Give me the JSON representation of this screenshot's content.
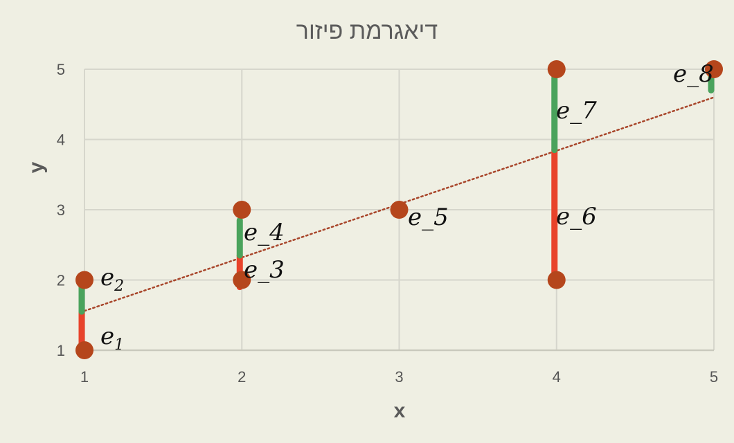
{
  "chart_data": {
    "type": "scatter",
    "title": "דיאגרמת פיזור",
    "xlabel": "x",
    "ylabel": "y",
    "xlim": [
      1,
      5
    ],
    "ylim": [
      1,
      5
    ],
    "x_ticks": [
      "1",
      "2",
      "3",
      "4",
      "5"
    ],
    "y_ticks": [
      "1",
      "2",
      "3",
      "4",
      "5"
    ],
    "grid": true,
    "points": [
      {
        "x": 1,
        "y": 1
      },
      {
        "x": 1,
        "y": 2
      },
      {
        "x": 2,
        "y": 2
      },
      {
        "x": 2,
        "y": 3
      },
      {
        "x": 3,
        "y": 3
      },
      {
        "x": 4,
        "y": 2
      },
      {
        "x": 4,
        "y": 5
      },
      {
        "x": 5,
        "y": 5
      }
    ],
    "trendline": {
      "style": "dotted",
      "slope": 0.76,
      "intercept": 0.8
    },
    "residuals": [
      {
        "label": "e",
        "sub": "1",
        "x": 1,
        "y_from": 1.0,
        "y_to": 1.55,
        "color": "#e8432b"
      },
      {
        "label": "e",
        "sub": "2",
        "x": 1,
        "y_from": 1.55,
        "y_to": 1.9,
        "color": "#4aa35c"
      },
      {
        "label": "e_3",
        "sub": "",
        "x": 2,
        "y_from": 1.9,
        "y_to": 2.35,
        "color": "#e8432b"
      },
      {
        "label": "e_4",
        "sub": "",
        "x": 2,
        "y_from": 2.35,
        "y_to": 2.85,
        "color": "#4aa35c"
      },
      {
        "label": "e_5",
        "sub": "",
        "x": 3,
        "y_from": 3.0,
        "y_to": 3.0,
        "color": "#e8432b"
      },
      {
        "label": "e_6",
        "sub": "",
        "x": 4,
        "y_from": 2.05,
        "y_to": 3.85,
        "color": "#e8432b"
      },
      {
        "label": "e_7",
        "sub": "",
        "x": 4,
        "y_from": 3.85,
        "y_to": 4.88,
        "color": "#4aa35c"
      },
      {
        "label": "e_8",
        "sub": "",
        "x": 5,
        "y_from": 4.7,
        "y_to": 4.92,
        "color": "#4aa35c"
      }
    ],
    "colors": {
      "point": "#b5461c",
      "trendline": "#a8452a",
      "grid": "#d6d6cc",
      "axis": "#c9c9bd"
    }
  }
}
